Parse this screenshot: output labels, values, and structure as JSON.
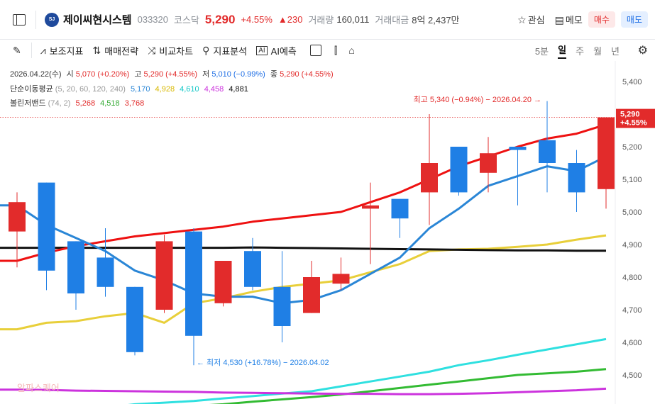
{
  "header": {
    "logo_text": "SJ",
    "name": "제이씨현시스템",
    "code": "033320",
    "market": "코스닥",
    "price": "5,290",
    "pct": "+4.55%",
    "change": "▲230",
    "volume_label": "거래량",
    "volume": "160,011",
    "value_label": "거래대금",
    "value": "8억 2,437만",
    "watch_label": "관심",
    "memo_label": "메모",
    "buy_label": "매수",
    "sell_label": "매도"
  },
  "toolbar": {
    "items": [
      "보조지표",
      "매매전략",
      "비교차트",
      "지표분석",
      "AI예측"
    ],
    "periods": [
      "5분",
      "일",
      "주",
      "월",
      "년"
    ],
    "active_period": "일"
  },
  "legend": {
    "date": "2026.04.22(수)",
    "open_label": "시",
    "open": "5,070 (+0.20%)",
    "high_label": "고",
    "high": "5,290 (+4.55%)",
    "low_label": "저",
    "low": "5,010 (−0.99%)",
    "close_label": "종",
    "close": "5,290 (+4.55%)",
    "ma_label": "단순이동평균",
    "ma_params": "(5, 20, 60, 120, 240)",
    "ma_values": [
      "5,170",
      "4,928",
      "4,610",
      "4,458",
      "4,881"
    ],
    "bb_label": "볼린저밴드",
    "bb_params": "(74, 2)",
    "bb_values": [
      "5,268",
      "4,518",
      "3,768"
    ]
  },
  "colors": {
    "up": "#e22b2b",
    "down": "#1f7fe5",
    "ma5": "#2a86d6",
    "ma20": "#e8cf3a",
    "ma60": "#2fe0e0",
    "ma120": "#cc33dd",
    "ma240": "#111111",
    "bb_upper": "#ee1111",
    "bb_mid": "#33bb33"
  },
  "chart_data": {
    "type": "candlestick",
    "ylim": [
      4420,
      5440
    ],
    "yticks": [
      "5,400",
      "5,300",
      "5,200",
      "5,100",
      "5,000",
      "4,900",
      "4,800",
      "4,700",
      "4,600",
      "4,500"
    ],
    "candles": [
      {
        "o": 4940,
        "h": 5060,
        "l": 4830,
        "c": 5030
      },
      {
        "o": 5090,
        "h": 5090,
        "l": 4760,
        "c": 4820
      },
      {
        "o": 4910,
        "h": 4910,
        "l": 4700,
        "c": 4750
      },
      {
        "o": 4860,
        "h": 4950,
        "l": 4740,
        "c": 4770
      },
      {
        "o": 4770,
        "h": 4770,
        "l": 4560,
        "c": 4570
      },
      {
        "o": 4700,
        "h": 4930,
        "l": 4690,
        "c": 4910
      },
      {
        "o": 4940,
        "h": 4950,
        "l": 4530,
        "c": 4620
      },
      {
        "o": 4720,
        "h": 4850,
        "l": 4710,
        "c": 4850
      },
      {
        "o": 4880,
        "h": 4920,
        "l": 4760,
        "c": 4770
      },
      {
        "o": 4770,
        "h": 4880,
        "l": 4600,
        "c": 4650
      },
      {
        "o": 4690,
        "h": 4850,
        "l": 4690,
        "c": 4800
      },
      {
        "o": 4780,
        "h": 4860,
        "l": 4760,
        "c": 4810
      },
      {
        "o": 5010,
        "h": 5090,
        "l": 4840,
        "c": 5020
      },
      {
        "o": 5040,
        "h": 5040,
        "l": 4920,
        "c": 4980
      },
      {
        "o": 5060,
        "h": 5300,
        "l": 4960,
        "c": 5150
      },
      {
        "o": 5200,
        "h": 5200,
        "l": 5050,
        "c": 5060
      },
      {
        "o": 5120,
        "h": 5230,
        "l": 5060,
        "c": 5180
      },
      {
        "o": 5200,
        "h": 5200,
        "l": 5020,
        "c": 5190
      },
      {
        "o": 5220,
        "h": 5340,
        "l": 5060,
        "c": 5150
      },
      {
        "o": 5150,
        "h": 5190,
        "l": 5000,
        "c": 5060
      },
      {
        "o": 5070,
        "h": 5290,
        "l": 5010,
        "c": 5290
      }
    ],
    "ma5": [
      5020,
      4960,
      4920,
      4880,
      4820,
      4790,
      4750,
      4740,
      4740,
      4720,
      4730,
      4760,
      4810,
      4860,
      4950,
      5010,
      5080,
      5110,
      5140,
      5125,
      5170
    ],
    "ma20": [
      4640,
      4660,
      4665,
      4680,
      4690,
      4660,
      4720,
      4735,
      4755,
      4770,
      4780,
      4790,
      4815,
      4840,
      4880,
      4885,
      4887,
      4893,
      4900,
      4915,
      4928
    ],
    "ma60": [
      4370,
      4380,
      4390,
      4400,
      4410,
      4415,
      4420,
      4428,
      4435,
      4443,
      4450,
      4465,
      4480,
      4495,
      4510,
      4530,
      4545,
      4562,
      4578,
      4594,
      4610
    ],
    "ma120": [
      4455,
      4454,
      4452,
      4451,
      4450,
      4449,
      4448,
      4446,
      4445,
      4444,
      4443,
      4442,
      4442,
      4441,
      4441,
      4442,
      4444,
      4447,
      4450,
      4453,
      4458
    ],
    "ma240": [
      4890,
      4890,
      4890,
      4890,
      4890,
      4890,
      4890,
      4890,
      4891,
      4890,
      4889,
      4888,
      4887,
      4886,
      4885,
      4884,
      4883,
      4882,
      4882,
      4881,
      4881
    ],
    "bb_upper": [
      4850,
      4875,
      4895,
      4910,
      4925,
      4935,
      4945,
      4955,
      4970,
      4980,
      4990,
      5000,
      5030,
      5060,
      5100,
      5140,
      5170,
      5200,
      5225,
      5240,
      5268
    ],
    "bb_mid": [
      4360,
      4370,
      4375,
      4385,
      4392,
      4398,
      4405,
      4410,
      4418,
      4425,
      4432,
      4440,
      4450,
      4460,
      4470,
      4480,
      4490,
      4500,
      4505,
      4510,
      4518
    ],
    "high_note": "최고 5,340 (−0.94%) − 2026.04.20",
    "low_note": "최저 4,530 (+16.78%) − 2026.04.02",
    "last_price_label": "5,290",
    "last_pct_label": "+4.55%",
    "watermark": "알파스퀘어"
  }
}
